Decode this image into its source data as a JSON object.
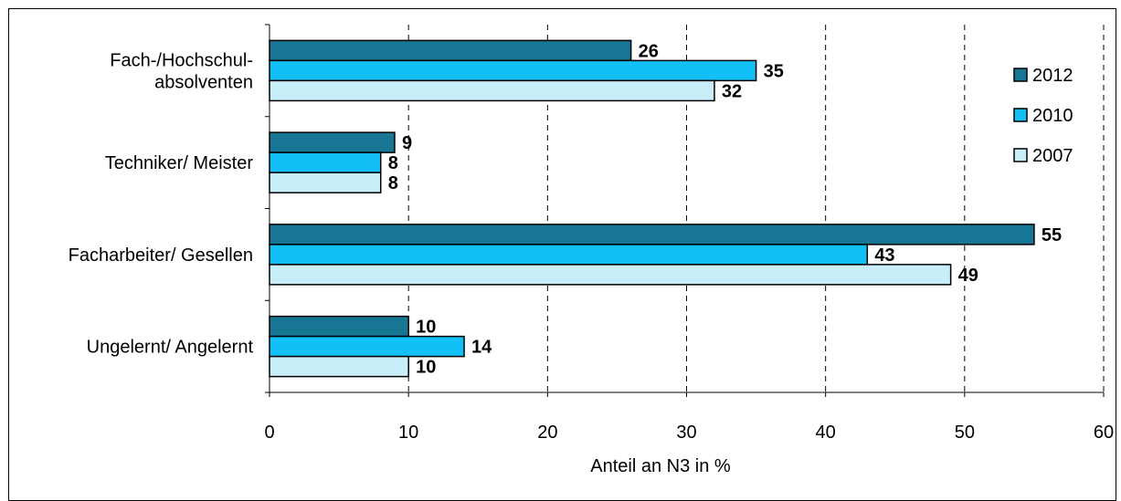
{
  "chart_data": {
    "type": "bar",
    "orientation": "horizontal",
    "categories": [
      [
        "Fach-/Hochschul-",
        "absolventen"
      ],
      [
        "Techniker/ Meister"
      ],
      [
        "Facharbeiter/ Gesellen"
      ],
      [
        "Ungelernt/ Angelernt"
      ]
    ],
    "series": [
      {
        "name": "2012",
        "color": "#167694",
        "values": [
          26,
          9,
          55,
          10
        ],
        "labels": [
          "26",
          "9",
          "55",
          "10"
        ]
      },
      {
        "name": "2010",
        "color": "#12C0F5",
        "values": [
          35,
          8,
          43,
          14
        ],
        "labels": [
          "35",
          "8",
          "43",
          "14"
        ]
      },
      {
        "name": "2007",
        "color": "#C8EEFA",
        "values": [
          32,
          8,
          49,
          10
        ],
        "labels": [
          "32",
          "8",
          "49",
          "10"
        ]
      }
    ],
    "xlabel": "Anteil an N3 in %",
    "xlim": [
      0,
      60
    ],
    "xticks": [
      "0",
      "10",
      "20",
      "30",
      "40",
      "50",
      "60"
    ],
    "grid": "vertical dashed",
    "legend_position": "right"
  }
}
